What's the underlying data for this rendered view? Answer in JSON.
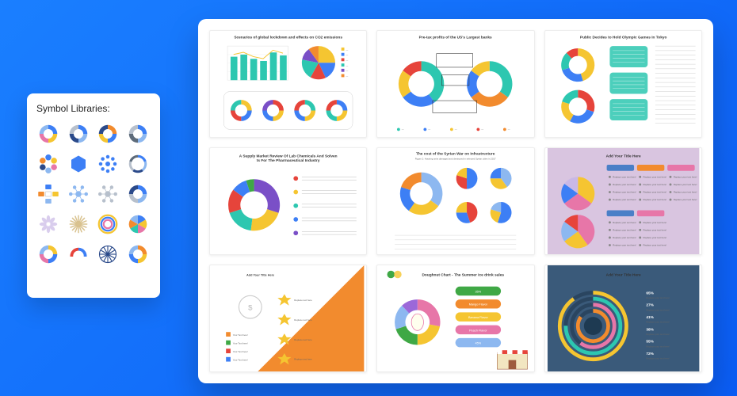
{
  "sidebar": {
    "title": "Symbol Libraries:"
  },
  "palette": {
    "blue": "#3d7ff5",
    "lblue": "#8db8f0",
    "navy": "#2b4a8a",
    "teal": "#2dc7b0",
    "green": "#3fa845",
    "yellow": "#f5c531",
    "orange": "#f28b2e",
    "red": "#e6443b",
    "purple": "#7a4fc7",
    "pink": "#e776a8",
    "violet": "#9b68d9",
    "grey": "#b7c0cc",
    "dgrey": "#5d6b7a",
    "cream": "#f2e6c1",
    "lilac": "#c9b8e6",
    "tan": "#d9c28f",
    "white": "#ffffff",
    "beige": "#e6d9a8"
  },
  "icons": [
    {
      "type": "donut-sect",
      "colors": [
        "#3d7ff5",
        "#f5c531",
        "#e776a8",
        "#8db8f0"
      ]
    },
    {
      "type": "donut-sect",
      "colors": [
        "#3d7ff5",
        "#8db8f0",
        "#2b4a8a",
        "#b7c0cc"
      ]
    },
    {
      "type": "donut-sect",
      "colors": [
        "#f28b2e",
        "#3d7ff5",
        "#f5c531",
        "#2b4a8a"
      ]
    },
    {
      "type": "donut-arrows",
      "colors": [
        "#3d7ff5",
        "#8db8f0",
        "#5d6b7a",
        "#b7c0cc"
      ]
    },
    {
      "type": "hexring",
      "colors": [
        "#3d7ff5",
        "#f5c531",
        "#e776a8",
        "#8db8f0",
        "#2b4a8a",
        "#f28b2e"
      ]
    },
    {
      "type": "hex",
      "color": "#3d7ff5"
    },
    {
      "type": "radial-dots",
      "color": "#3d7ff5"
    },
    {
      "type": "donut-thin",
      "colors": [
        "#3d7ff5",
        "#8db8f0",
        "#2b4a8a",
        "#b7c0cc",
        "#5d6b7a"
      ]
    },
    {
      "type": "cross-boxes",
      "colors": [
        "#3d7ff5",
        "#f5c531",
        "#8db8f0",
        "#f28b2e"
      ]
    },
    {
      "type": "hub-spoke",
      "color": "#8db8f0"
    },
    {
      "type": "hub-spoke",
      "color": "#b7c0cc"
    },
    {
      "type": "donut-sect",
      "colors": [
        "#3d7ff5",
        "#8db8f0",
        "#b7c0cc",
        "#2b4a8a"
      ]
    },
    {
      "type": "flower",
      "color": "#c9b8e6"
    },
    {
      "type": "sunburst",
      "color": "#d9c28f"
    },
    {
      "type": "multiring",
      "colors": [
        "#f5c531",
        "#3d7ff5",
        "#e776a8"
      ]
    },
    {
      "type": "pie6",
      "colors": [
        "#3d7ff5",
        "#f5c531",
        "#e776a8",
        "#2dc7b0",
        "#f28b2e",
        "#8db8f0"
      ]
    },
    {
      "type": "donut-sect",
      "colors": [
        "#f5c531",
        "#3d7ff5",
        "#e776a8",
        "#8db8f0"
      ]
    },
    {
      "type": "gauge",
      "colors": [
        "#3d7ff5",
        "#f5c531",
        "#e6443b"
      ]
    },
    {
      "type": "spokes",
      "color": "#2b4a8a"
    },
    {
      "type": "donut-sect",
      "colors": [
        "#f28b2e",
        "#f5c531",
        "#3d7ff5",
        "#8db8f0"
      ]
    }
  ],
  "cards": {
    "c1": {
      "title": "Scenarios of global lockdown and effects on CO2 emissions",
      "bars": {
        "values": [
          55,
          60,
          50,
          45,
          65,
          58
        ],
        "color": "#2dc7b0",
        "line_color": "#f5c531",
        "ylim": [
          0,
          80
        ]
      },
      "pie": {
        "values": [
          25,
          18,
          15,
          20,
          12,
          10
        ],
        "colors": [
          "#f5c531",
          "#3d7ff5",
          "#e6443b",
          "#2dc7b0",
          "#7a4fc7",
          "#f28b2e"
        ]
      },
      "small_donuts": [
        {
          "colors": [
            "#f5c531",
            "#3d7ff5",
            "#e6443b",
            "#2dc7b0"
          ]
        },
        {
          "colors": [
            "#e6443b",
            "#f5c531",
            "#3d7ff5",
            "#7a4fc7"
          ]
        },
        {
          "colors": [
            "#2dc7b0",
            "#f5c531",
            "#3d7ff5",
            "#e6443b"
          ]
        },
        {
          "colors": [
            "#3d7ff5",
            "#f5c531",
            "#2dc7b0",
            "#e6443b"
          ]
        }
      ]
    },
    "c2": {
      "title": "Pre-tax profits of the US's Largest banks",
      "donutA": {
        "values": [
          40,
          25,
          20,
          15
        ],
        "colors": [
          "#2dc7b0",
          "#3d7ff5",
          "#f5c531",
          "#e6443b"
        ]
      },
      "donutB": {
        "values": [
          35,
          30,
          20,
          15
        ],
        "colors": [
          "#2dc7b0",
          "#f28b2e",
          "#3d7ff5",
          "#f5c531"
        ]
      }
    },
    "c3": {
      "title": "Public Decides to Hold Olympic Games in Tokyo",
      "bg": "#ffffff",
      "donutA": {
        "values": [
          45,
          25,
          18,
          12
        ],
        "colors": [
          "#f5c531",
          "#3d7ff5",
          "#2dc7b0",
          "#e6443b"
        ]
      },
      "donutB": {
        "values": [
          30,
          28,
          22,
          20
        ],
        "colors": [
          "#e6443b",
          "#3d7ff5",
          "#f5c531",
          "#2dc7b0"
        ]
      },
      "box_color": "#2dc7b0"
    },
    "c4": {
      "title": "A Supply Market Review Of Lab Chemicals And Solvents For The Pharmaceutical Industry",
      "donut": {
        "values": [
          30,
          22,
          18,
          15,
          10,
          5
        ],
        "colors": [
          "#7a4fc7",
          "#f5c531",
          "#2dc7b0",
          "#e6443b",
          "#3d7ff5",
          "#3fa845"
        ]
      },
      "legend_dots": [
        "#e6443b",
        "#f5c531",
        "#2dc7b0",
        "#3d7ff5",
        "#7a4fc7"
      ]
    },
    "c5": {
      "title": "The cost of the Syrian War on Infrastructure",
      "subtitle": "Figure 2: Housing units damaged and destroyed in selected Syrian cities in 2017",
      "big_donut": {
        "values": [
          35,
          25,
          20,
          20
        ],
        "colors": [
          "#8db8f0",
          "#f5c531",
          "#3d7ff5",
          "#f28b2e"
        ]
      },
      "pies": [
        {
          "values": [
            50,
            30,
            20
          ],
          "colors": [
            "#3d7ff5",
            "#e6443b",
            "#f5c531"
          ]
        },
        {
          "values": [
            40,
            35,
            25
          ],
          "colors": [
            "#8db8f0",
            "#f5c531",
            "#3d7ff5"
          ]
        },
        {
          "values": [
            45,
            30,
            25
          ],
          "colors": [
            "#e6443b",
            "#3d7ff5",
            "#f5c531"
          ]
        },
        {
          "values": [
            55,
            25,
            20
          ],
          "colors": [
            "#3d7ff5",
            "#f5c531",
            "#8db8f0"
          ]
        }
      ]
    },
    "c6": {
      "title": "Add Your Title Here",
      "bg": "#d9c5e0",
      "left_pie": {
        "values": [
          35,
          30,
          20,
          15
        ],
        "colors": [
          "#f5c531",
          "#e776a8",
          "#3d7ff5",
          "#c9b8e6"
        ]
      },
      "right_pie": {
        "values": [
          40,
          25,
          20,
          15
        ],
        "colors": [
          "#e776a8",
          "#f5c531",
          "#8db8f0",
          "#e6443b"
        ]
      },
      "header_colors": [
        "#4a7fc7",
        "#f28b2e",
        "#e776a8"
      ],
      "item_text": "Replace your text here!"
    },
    "c7": {
      "title": "Add Your Title Here",
      "bg": "#ffffff",
      "wedge_color": "#f28b2e",
      "star_color": "#f5c531",
      "legend_colors": [
        "#f28b2e",
        "#3fa845",
        "#e6443b",
        "#3d7ff5"
      ],
      "item_text": "Replace text here",
      "legend_text": "Your Text here!"
    },
    "c8": {
      "title": "Doughnut Chart  -  The Summer ice drink sales",
      "bg": "#ffffff",
      "donut": {
        "values": [
          28,
          22,
          20,
          18,
          12
        ],
        "colors": [
          "#e776a8",
          "#f5c531",
          "#3fa845",
          "#8db8f0",
          "#9b68d9"
        ]
      },
      "pills": [
        {
          "label": "35%",
          "color": "#3fa845"
        },
        {
          "label": "Mango Flavor",
          "color": "#f28b2e"
        },
        {
          "label": "Banana Flavor",
          "color": "#f5c531"
        },
        {
          "label": "Peach Flavor",
          "color": "#e776a8"
        },
        {
          "label": "45%",
          "color": "#8db8f0"
        }
      ],
      "shop_color": "#9e5b3e"
    },
    "c9": {
      "title": "Add Your Title Here",
      "bg": "#3a5a7a",
      "rings": [
        {
          "radius": 44,
          "color": "#f5c531",
          "pct": 90
        },
        {
          "radius": 36,
          "color": "#2dc7b0",
          "pct": 75
        },
        {
          "radius": 28,
          "color": "#e776a8",
          "pct": 60
        },
        {
          "radius": 20,
          "color": "#f28b2e",
          "pct": 85
        }
      ],
      "legend_items": [
        "65%",
        "27%",
        "41%",
        "38%",
        "55%",
        "72%"
      ],
      "legend_text": "Replace your text here!"
    }
  }
}
